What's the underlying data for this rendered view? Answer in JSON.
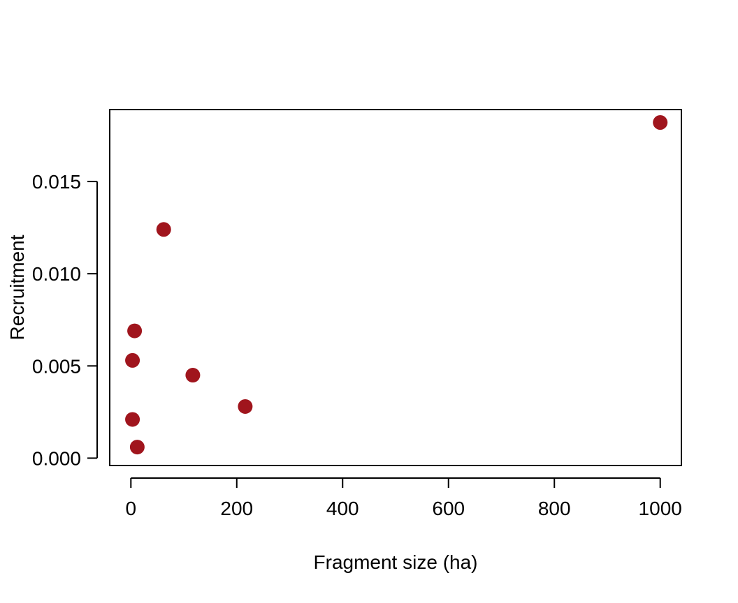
{
  "chart_data": {
    "type": "scatter",
    "title": "",
    "xlabel": "Fragment size (ha)",
    "ylabel": "Recruitment",
    "xlim": [
      -40,
      1040
    ],
    "ylim": [
      -0.0004,
      0.0189
    ],
    "x_ticks": [
      0,
      200,
      400,
      600,
      800,
      1000
    ],
    "x_tick_labels": [
      "0",
      "200",
      "400",
      "600",
      "800",
      "1000"
    ],
    "y_ticks": [
      0.0,
      0.005,
      0.01,
      0.015
    ],
    "y_tick_labels": [
      "0.000",
      "0.005",
      "0.010",
      "0.015"
    ],
    "grid": false,
    "legend": "none",
    "marker_color": "#A0151D",
    "series": [
      {
        "points": [
          {
            "x": 1000,
            "y": 0.0182
          },
          {
            "x": 62,
            "y": 0.0124
          },
          {
            "x": 7,
            "y": 0.0069
          },
          {
            "x": 3,
            "y": 0.0053
          },
          {
            "x": 117,
            "y": 0.0045
          },
          {
            "x": 216,
            "y": 0.0028
          },
          {
            "x": 3,
            "y": 0.0021
          },
          {
            "x": 12,
            "y": 0.0006
          }
        ]
      }
    ]
  }
}
